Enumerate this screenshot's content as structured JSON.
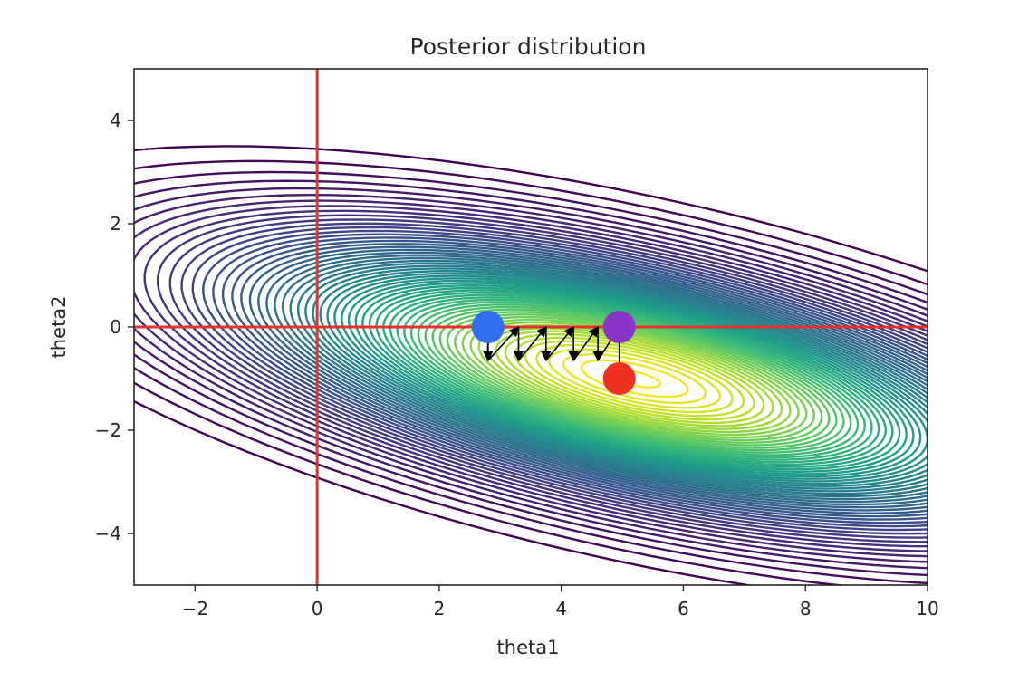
{
  "chart_data": {
    "type": "contour",
    "title": "Posterior distribution",
    "xlabel": "theta1",
    "ylabel": "theta2",
    "xlim": [
      -3,
      10
    ],
    "ylim": [
      -5,
      5
    ],
    "x_ticks": [
      -2,
      0,
      2,
      4,
      6,
      8,
      10
    ],
    "y_ticks": [
      -4,
      -2,
      0,
      2,
      4
    ],
    "x_tick_labels": [
      "−2",
      "0",
      "2",
      "4",
      "6",
      "8",
      "10"
    ],
    "y_tick_labels": [
      "−4",
      "−2",
      "0",
      "2",
      "4"
    ],
    "grid": false,
    "colormap": "viridis",
    "density": {
      "mean": [
        5.2,
        -1.0
      ],
      "std": [
        4.2,
        1.7
      ],
      "correlation": -0.6,
      "outer_level": 0.03
    },
    "reference_lines": [
      {
        "orientation": "vertical",
        "value": 0,
        "color": "#e8312a"
      },
      {
        "orientation": "horizontal",
        "value": 0,
        "color": "#e8312a"
      }
    ],
    "points": [
      {
        "x": 2.8,
        "y": 0.0,
        "color": "#2f6ff0"
      },
      {
        "x": 4.95,
        "y": 0.0,
        "color": "#8a35c8"
      },
      {
        "x": 4.95,
        "y": -1.0,
        "color": "#ee3120"
      }
    ],
    "path": [
      [
        2.8,
        0.0
      ],
      [
        2.8,
        -0.65
      ],
      [
        3.3,
        0.0
      ],
      [
        3.3,
        -0.65
      ],
      [
        3.75,
        0.0
      ],
      [
        3.75,
        -0.65
      ],
      [
        4.2,
        0.0
      ],
      [
        4.2,
        -0.65
      ],
      [
        4.6,
        0.0
      ],
      [
        4.6,
        -0.65
      ],
      [
        4.95,
        0.0
      ],
      [
        4.95,
        -1.0
      ]
    ],
    "path_color": "#000000"
  }
}
